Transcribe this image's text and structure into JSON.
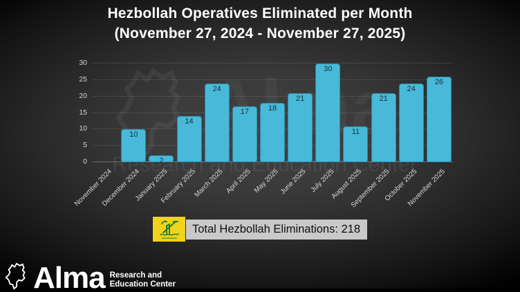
{
  "chart_data": {
    "type": "bar",
    "title": "Hezbollah Operatives Eliminated per Month",
    "subtitle": "(November 27, 2024 - November 27, 2025)",
    "categories": [
      "November 2024",
      "December 2024",
      "January 2025",
      "February 2025",
      "March 2025",
      "April 2025",
      "May 2025",
      "June 2025",
      "July 2025",
      "August 2025",
      "September 2025",
      "October 2025",
      "November 2025"
    ],
    "values": [
      0,
      10,
      2,
      14,
      24,
      17,
      18,
      21,
      30,
      11,
      21,
      24,
      26
    ],
    "xlabel": "",
    "ylabel": "",
    "ylim": [
      0,
      30
    ],
    "yticks": [
      0,
      5,
      10,
      15,
      20,
      25,
      30
    ],
    "grid": true,
    "legend": "none",
    "bar_color": "#48b9d9",
    "bar_label_color": "#1c2e36",
    "tick_color": "#d6d6d6"
  },
  "total_banner": {
    "label": "Total Hezbollah Eliminations: 218",
    "value": 218,
    "flag_bg": "#f2d31b",
    "flag_emblem": "#1e7d32"
  },
  "watermark": {
    "name": "Alma",
    "subtitle": "Research and Education Center"
  },
  "logo": {
    "name": "Alma",
    "subtitle_line1": "Research and",
    "subtitle_line2": "Education Center"
  }
}
